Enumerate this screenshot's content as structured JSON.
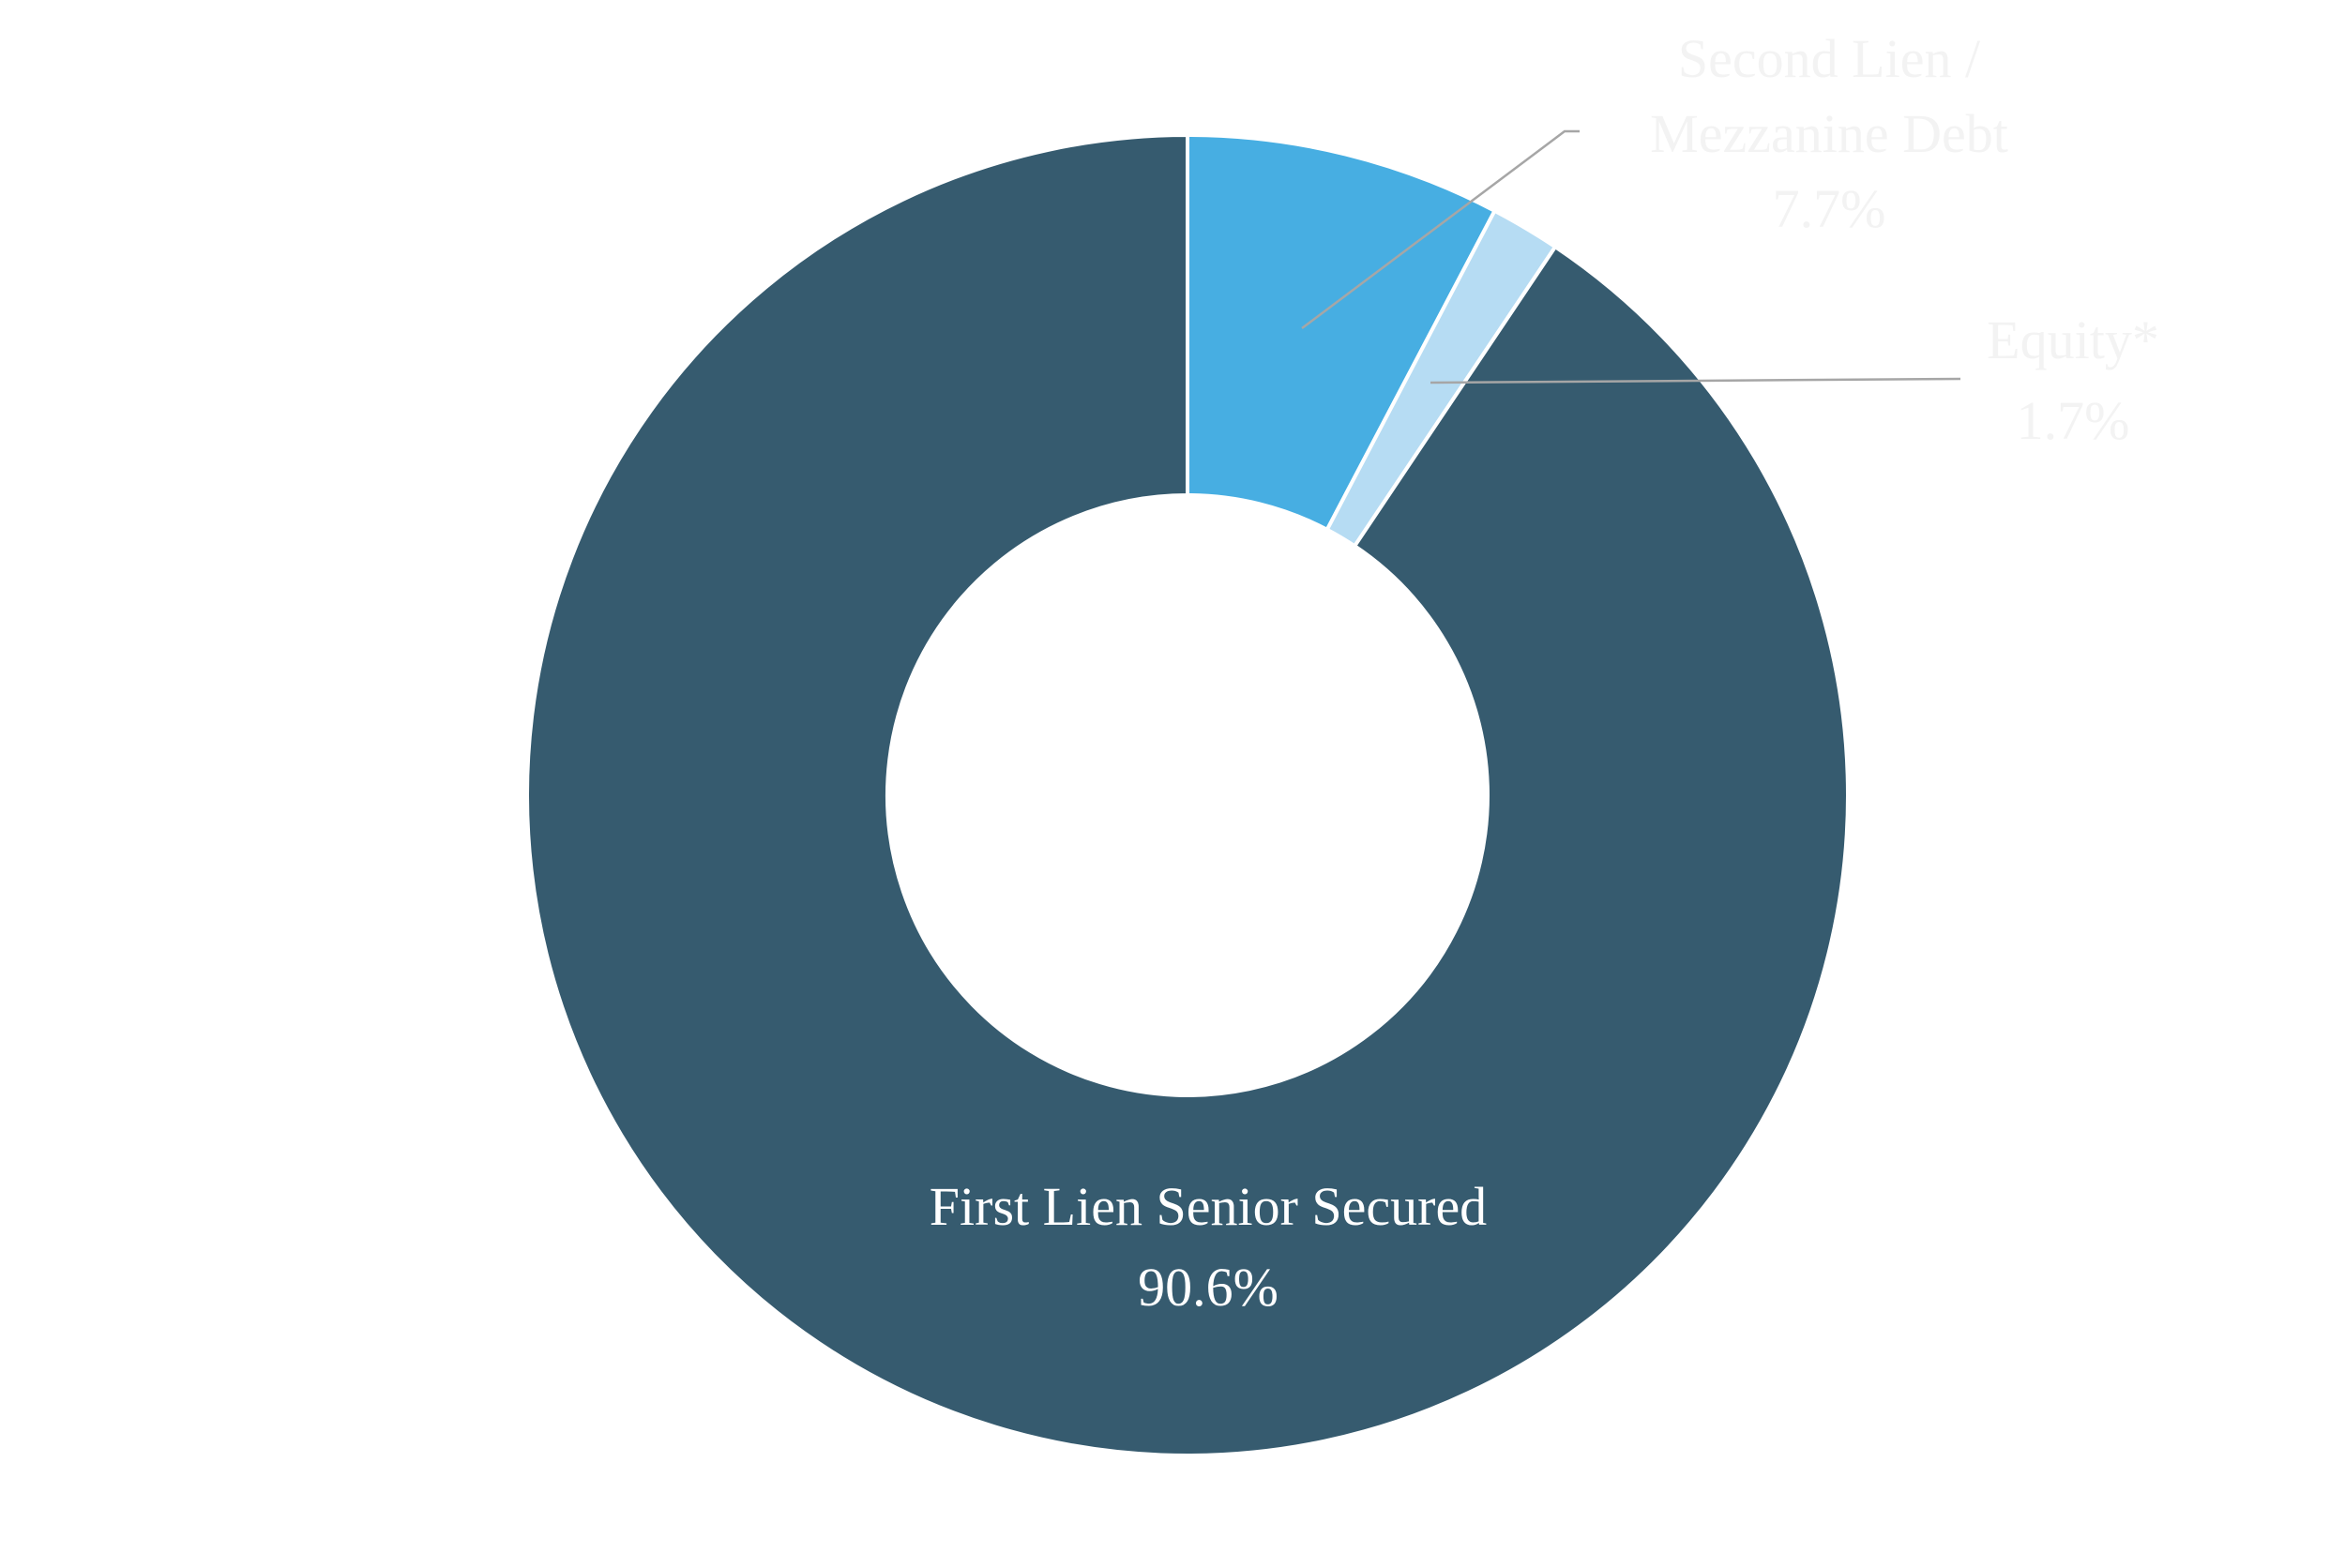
{
  "chart_data": {
    "type": "pie",
    "variant": "donut",
    "title": "",
    "slices": [
      {
        "name": "Second Lien / Mezzanine Debt",
        "label_lines": [
          "Second Lien /",
          "Mezzanine Debt",
          "7.7%"
        ],
        "value": 7.7,
        "color": "#47aee2",
        "label_color": "#f3f3f3"
      },
      {
        "name": "Equity*",
        "label_lines": [
          "Equity*",
          "1.7%"
        ],
        "value": 1.7,
        "color": "#b6dcf3",
        "label_color": "#f3f3f3"
      },
      {
        "name": "First Lien Senior Secured",
        "label_lines": [
          "First Lien Senior Secured",
          "90.6%"
        ],
        "value": 90.6,
        "color": "#365b6f",
        "label_color": "#ffffff"
      }
    ],
    "start_angle_deg": 0,
    "direction": "clockwise",
    "legend": "none",
    "slice_border_color": "#ffffff",
    "leader_line_color": "#a6a6a6"
  }
}
